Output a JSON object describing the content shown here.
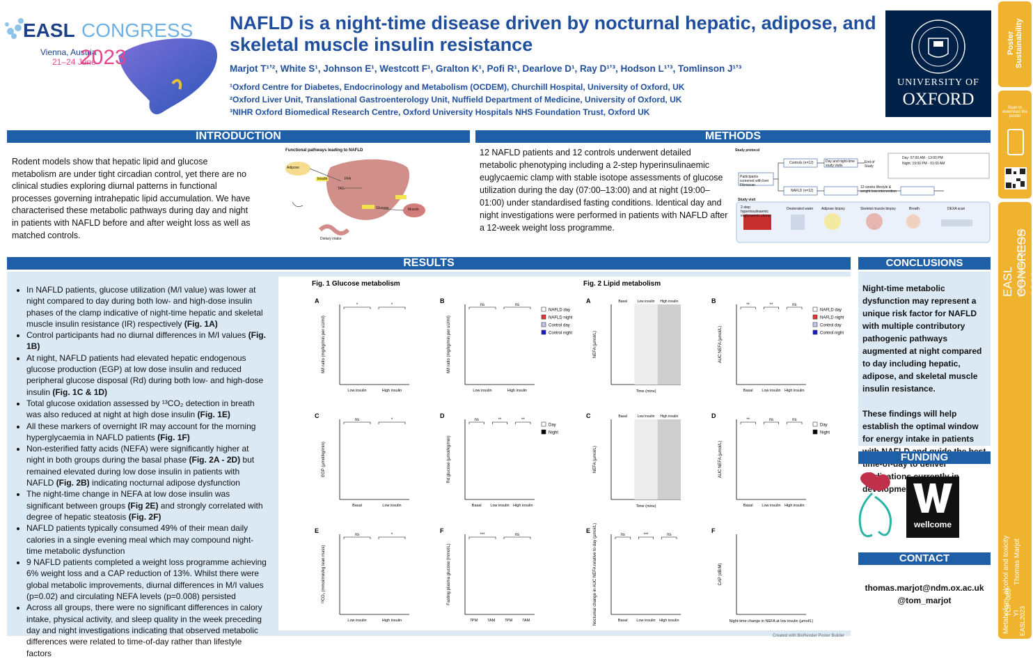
{
  "logo": {
    "easl": "EASL",
    "congress": "CONGRESS",
    "location": "Vienna, Austria",
    "dates": "21–24 June",
    "year": "2023"
  },
  "header": {
    "title": "NAFLD is a night-time disease driven by nocturnal hepatic, adipose, and skeletal muscle insulin resistance",
    "authors": "Marjot T¹ʼ², White S¹, Johnson E¹, Westcott F¹, Gralton K¹, Pofi R¹, Dearlove D¹, Ray D¹ʼ³, Hodson L¹ʼ³, Tomlinson J¹ʼ³",
    "affiliations": [
      "¹Oxford Centre for Diabetes, Endocrinology and Metabolism (OCDEM), Churchill Hospital, University of Oxford, UK",
      "²Oxford Liver Unit, Translational Gastroenterology Unit, Nuffield Department of Medicine, University of Oxford, UK",
      "³NIHR Oxford Biomedical Research Centre, Oxford University Hospitals NHS Foundation Trust, Oxford UK"
    ]
  },
  "oxford": {
    "line1": "UNIVERSITY OF",
    "line2": "OXFORD"
  },
  "introduction": {
    "heading": "INTRODUCTION",
    "text": "Rodent models show that hepatic lipid and glucose metabolism are under tight circadian control, yet there are no clinical studies exploring diurnal patterns in functional processes governing intrahepatic lipid accumulation. We have characterised these metabolic pathways during day and night in patients with NAFLD before and after weight loss as well as matched controls.",
    "diagram": {
      "title": "Functional pathways leading to NAFLD",
      "labels": [
        "Adipose",
        "FFA",
        "Insulin",
        "TAG",
        "Glucose",
        "Muscle",
        "Dietary intake"
      ]
    }
  },
  "methods": {
    "heading": "METHODS",
    "text": "12 NAFLD patients and 12 controls underwent detailed metabolic phenotyping including a 2-step hyperinsulinaemic euglycaemic clamp with stable isotope assessments of glucose utilization during the day (07:00–13:00) and at night (19:00–01:00) under standardised fasting conditions. Identical day and night investigations were performed in patients with NAFLD after a 12-week weight loss programme.",
    "diagram": {
      "title": "Study protocol",
      "screen": "Participants screened with liver Fibroscan",
      "controls": "Controls (n=12)",
      "nafld": "NAFLD (n=12)",
      "visits": "Day and night-time study visits",
      "end": "End of Study",
      "intervention": "12-weeks lifestyle & weight loss intervention",
      "times": [
        "Day: 07:00 AM - 13:00 PM",
        "Night: 19:00 PM - 01:00 AM"
      ],
      "visit_title": "Study visit",
      "visit_items": [
        "2-step hyperinsulinaemic euglycaemic clamp",
        "Deuterated water",
        "Adipose biopsy",
        "Skeletal muscle biopsy",
        "Breath",
        "DEXA scan"
      ]
    }
  },
  "results": {
    "heading": "RESULTS",
    "bullets": [
      [
        {
          "text": "In NAFLD patients, glucose utilization (M/I value) was lower at night compared to day during both low- and high-dose insulin phases of the clamp indicative of night-time hepatic and skeletal muscle insulin resistance (IR) respectively "
        },
        {
          "text": "(Fig. 1A)",
          "bold": true
        }
      ],
      [
        {
          "text": "Control participants had no diurnal differences in M/I values "
        },
        {
          "text": "(Fig. 1B)",
          "bold": true
        }
      ],
      [
        {
          "text": "At night, NAFLD patients had elevated hepatic endogenous glucose production (EGP) at low dose insulin and reduced peripheral glucose disposal (Rd) during both low- and high-dose insulin "
        },
        {
          "text": "(Fig. 1C & 1D)",
          "bold": true
        }
      ],
      [
        {
          "text": "Total glucose oxidation assessed by ¹³CO₂ detection in breath was also reduced at night at high dose insulin "
        },
        {
          "text": "(Fig. 1E)",
          "bold": true
        }
      ],
      [
        {
          "text": "All these markers of overnight IR may account for the morning hyperglycaemia in NAFLD patients "
        },
        {
          "text": "(Fig. 1F)",
          "bold": true
        }
      ],
      [
        {
          "text": "Non-esterified fatty acids (NEFA) were significantly higher at night in both groups during the basal phase "
        },
        {
          "text": "(Fig. 2A - 2D)",
          "bold": true
        },
        {
          "text": " but remained elevated during low dose insulin in patients with NAFLD "
        },
        {
          "text": "(Fig. 2B)",
          "bold": true
        },
        {
          "text": " indicating nocturnal adipose dysfunction"
        }
      ],
      [
        {
          "text": "The night-time change in NEFA at low dose insulin was significant between groups "
        },
        {
          "text": "(Fig 2E)",
          "bold": true
        },
        {
          "text": " and strongly correlated with degree of hepatic steatosis "
        },
        {
          "text": "(Fig. 2F)",
          "bold": true
        }
      ],
      [
        {
          "text": "NAFLD patients typically consumed 49% of their mean daily calories in a single evening meal which may compound night-time metabolic dysfunction"
        }
      ],
      [
        {
          "text": "9 NAFLD patients completed a weight loss programme achieving 6% weight loss and a CAP reduction of 13%. Whilst there were global metabolic improvements, diurnal differences in M/I values (p=0.02) and circulating NEFA levels (p=0.008) persisted"
        }
      ],
      [
        {
          "text": "Across all groups, there were no significant differences in calory intake, physical activity, and sleep quality in the week preceding day and night investigations indicating that observed metabolic differences were related to time-of-day rather than lifestyle factors"
        }
      ]
    ]
  },
  "figures": [
    {
      "title": "Fig. 1  Glucose metabolism",
      "legends": [
        {
          "panel": 1,
          "entries": [
            {
              "name": "NAFLD day",
              "color": "#ffffff"
            },
            {
              "name": "NAFLD night",
              "color": "#e53935"
            },
            {
              "name": "Control day",
              "color": "#c5c5f2"
            },
            {
              "name": "Control night",
              "color": "#1a1acc"
            }
          ]
        },
        {
          "panel": 3,
          "entries": [
            {
              "name": "Day",
              "color": "#ffffff"
            },
            {
              "name": "Night",
              "color": "#000000"
            }
          ]
        }
      ],
      "panels": [
        {
          "letter": "A",
          "ylabel": "M/I ratio (mg/kg/min per uU/ml)",
          "xlabels": [
            "Low insulin",
            "High insulin"
          ],
          "sig": [
            "*",
            "*"
          ]
        },
        {
          "letter": "B",
          "ylabel": "M/I ratio (mg/kg/min per uU/ml)",
          "xlabels": [
            "Low insulin",
            "High insulin"
          ],
          "sig": [
            "ns",
            "ns"
          ]
        },
        {
          "letter": "C",
          "ylabel": "EGP (µmol/kg/min)",
          "xlabels": [
            "Basal",
            "Low insulin"
          ],
          "sig": [
            "ns",
            "*"
          ]
        },
        {
          "letter": "D",
          "ylabel": "Rd glucose (µmol/kg/min)",
          "xlabels": [
            "Basal",
            "Low insulin",
            "High insulin"
          ],
          "sig": [
            "ns",
            "**",
            "**"
          ]
        },
        {
          "letter": "E",
          "ylabel": "¹³CO₂ (mmol/min/kg lean mass)",
          "xlabels": [
            "Low insulin",
            "High insulin"
          ],
          "sig": [
            "ns",
            "*"
          ]
        },
        {
          "letter": "F",
          "ylabel": "Fasting plasma glucose (mmol/L)",
          "xlabels": [
            "7PM",
            "7AM",
            "7PM",
            "7AM"
          ],
          "sig": [
            "***",
            "ns"
          ]
        }
      ]
    },
    {
      "title": "Fig. 2  Lipid metabolism",
      "legends": [
        {
          "panel": 1,
          "entries": [
            {
              "name": "NAFLD day",
              "color": "#ffffff"
            },
            {
              "name": "NAFLD night",
              "color": "#e53935"
            },
            {
              "name": "Control day",
              "color": "#c5c5f2"
            },
            {
              "name": "Control night",
              "color": "#1a1acc"
            }
          ]
        },
        {
          "panel": 3,
          "entries": [
            {
              "name": "Day",
              "color": "#ffffff"
            },
            {
              "name": "Night",
              "color": "#000000"
            }
          ]
        }
      ],
      "panels": [
        {
          "letter": "A",
          "ylabel": "NEFA (µmol/L)",
          "xtitle": "Time (mins)",
          "phases": [
            "Basal",
            "Low insulin",
            "High insulin"
          ]
        },
        {
          "letter": "B",
          "ylabel": "AUC NEFA (µmol/L)",
          "xlabels": [
            "Basal",
            "Low insulin",
            "High insulin"
          ],
          "sig": [
            "**",
            "**",
            "ns"
          ]
        },
        {
          "letter": "C",
          "ylabel": "NEFA (µmol/L)",
          "xtitle": "Time (mins)",
          "phases": [
            "Basal",
            "Low insulin",
            "High insulin"
          ]
        },
        {
          "letter": "D",
          "ylabel": "AUC NEFA (µmol/L)",
          "xlabels": [
            "Basal",
            "Low insulin",
            "High insulin"
          ],
          "sig": [
            "**",
            "ns",
            "ns"
          ]
        },
        {
          "letter": "E",
          "ylabel": "Nocturnal change in AUC NEFA relative to day (µmol/L)",
          "xlabels": [
            "Basal",
            "Low insulin",
            "High insulin"
          ],
          "sig": [
            "ns",
            "***",
            "ns"
          ]
        },
        {
          "letter": "F",
          "ylabel": "CAP (dB/M)",
          "xtitle": "Night-time change in NEFA at low insulin (µmol/L)"
        }
      ]
    }
  ],
  "credit": "Created with BioRender Poster Builder",
  "conclusions": {
    "heading": "CONCLUSIONS",
    "paragraphs": [
      "Night-time metabolic dysfunction may represent a unique risk factor for NAFLD with multiple contributory pathogenic pathways augmented at night compared to day including hepatic, adipose, and skeletal muscle insulin resistance.",
      "These findings will help establish the optimal window for energy intake in patients with NAFLD and guide the best time-of-day to deliver medications currently in development."
    ]
  },
  "funding": {
    "heading": "FUNDING",
    "wellcome": "wellcome"
  },
  "contact": {
    "heading": "CONTACT",
    "email": "thomas.marjot@ndm.ox.ac.uk",
    "handle": "@tom_marjot"
  },
  "sidebar": {
    "sustainability": "Poster Sustainability",
    "scan": "Scan to download the poster",
    "congress": "EASL CONGRESS 2023",
    "venue": "Vienna, Austria 21–24 June",
    "category": "Metabolism, alcohol and toxicity",
    "author": "Thomas Marjot",
    "code": "TOP-089-YI",
    "tag": "EASL2023"
  }
}
